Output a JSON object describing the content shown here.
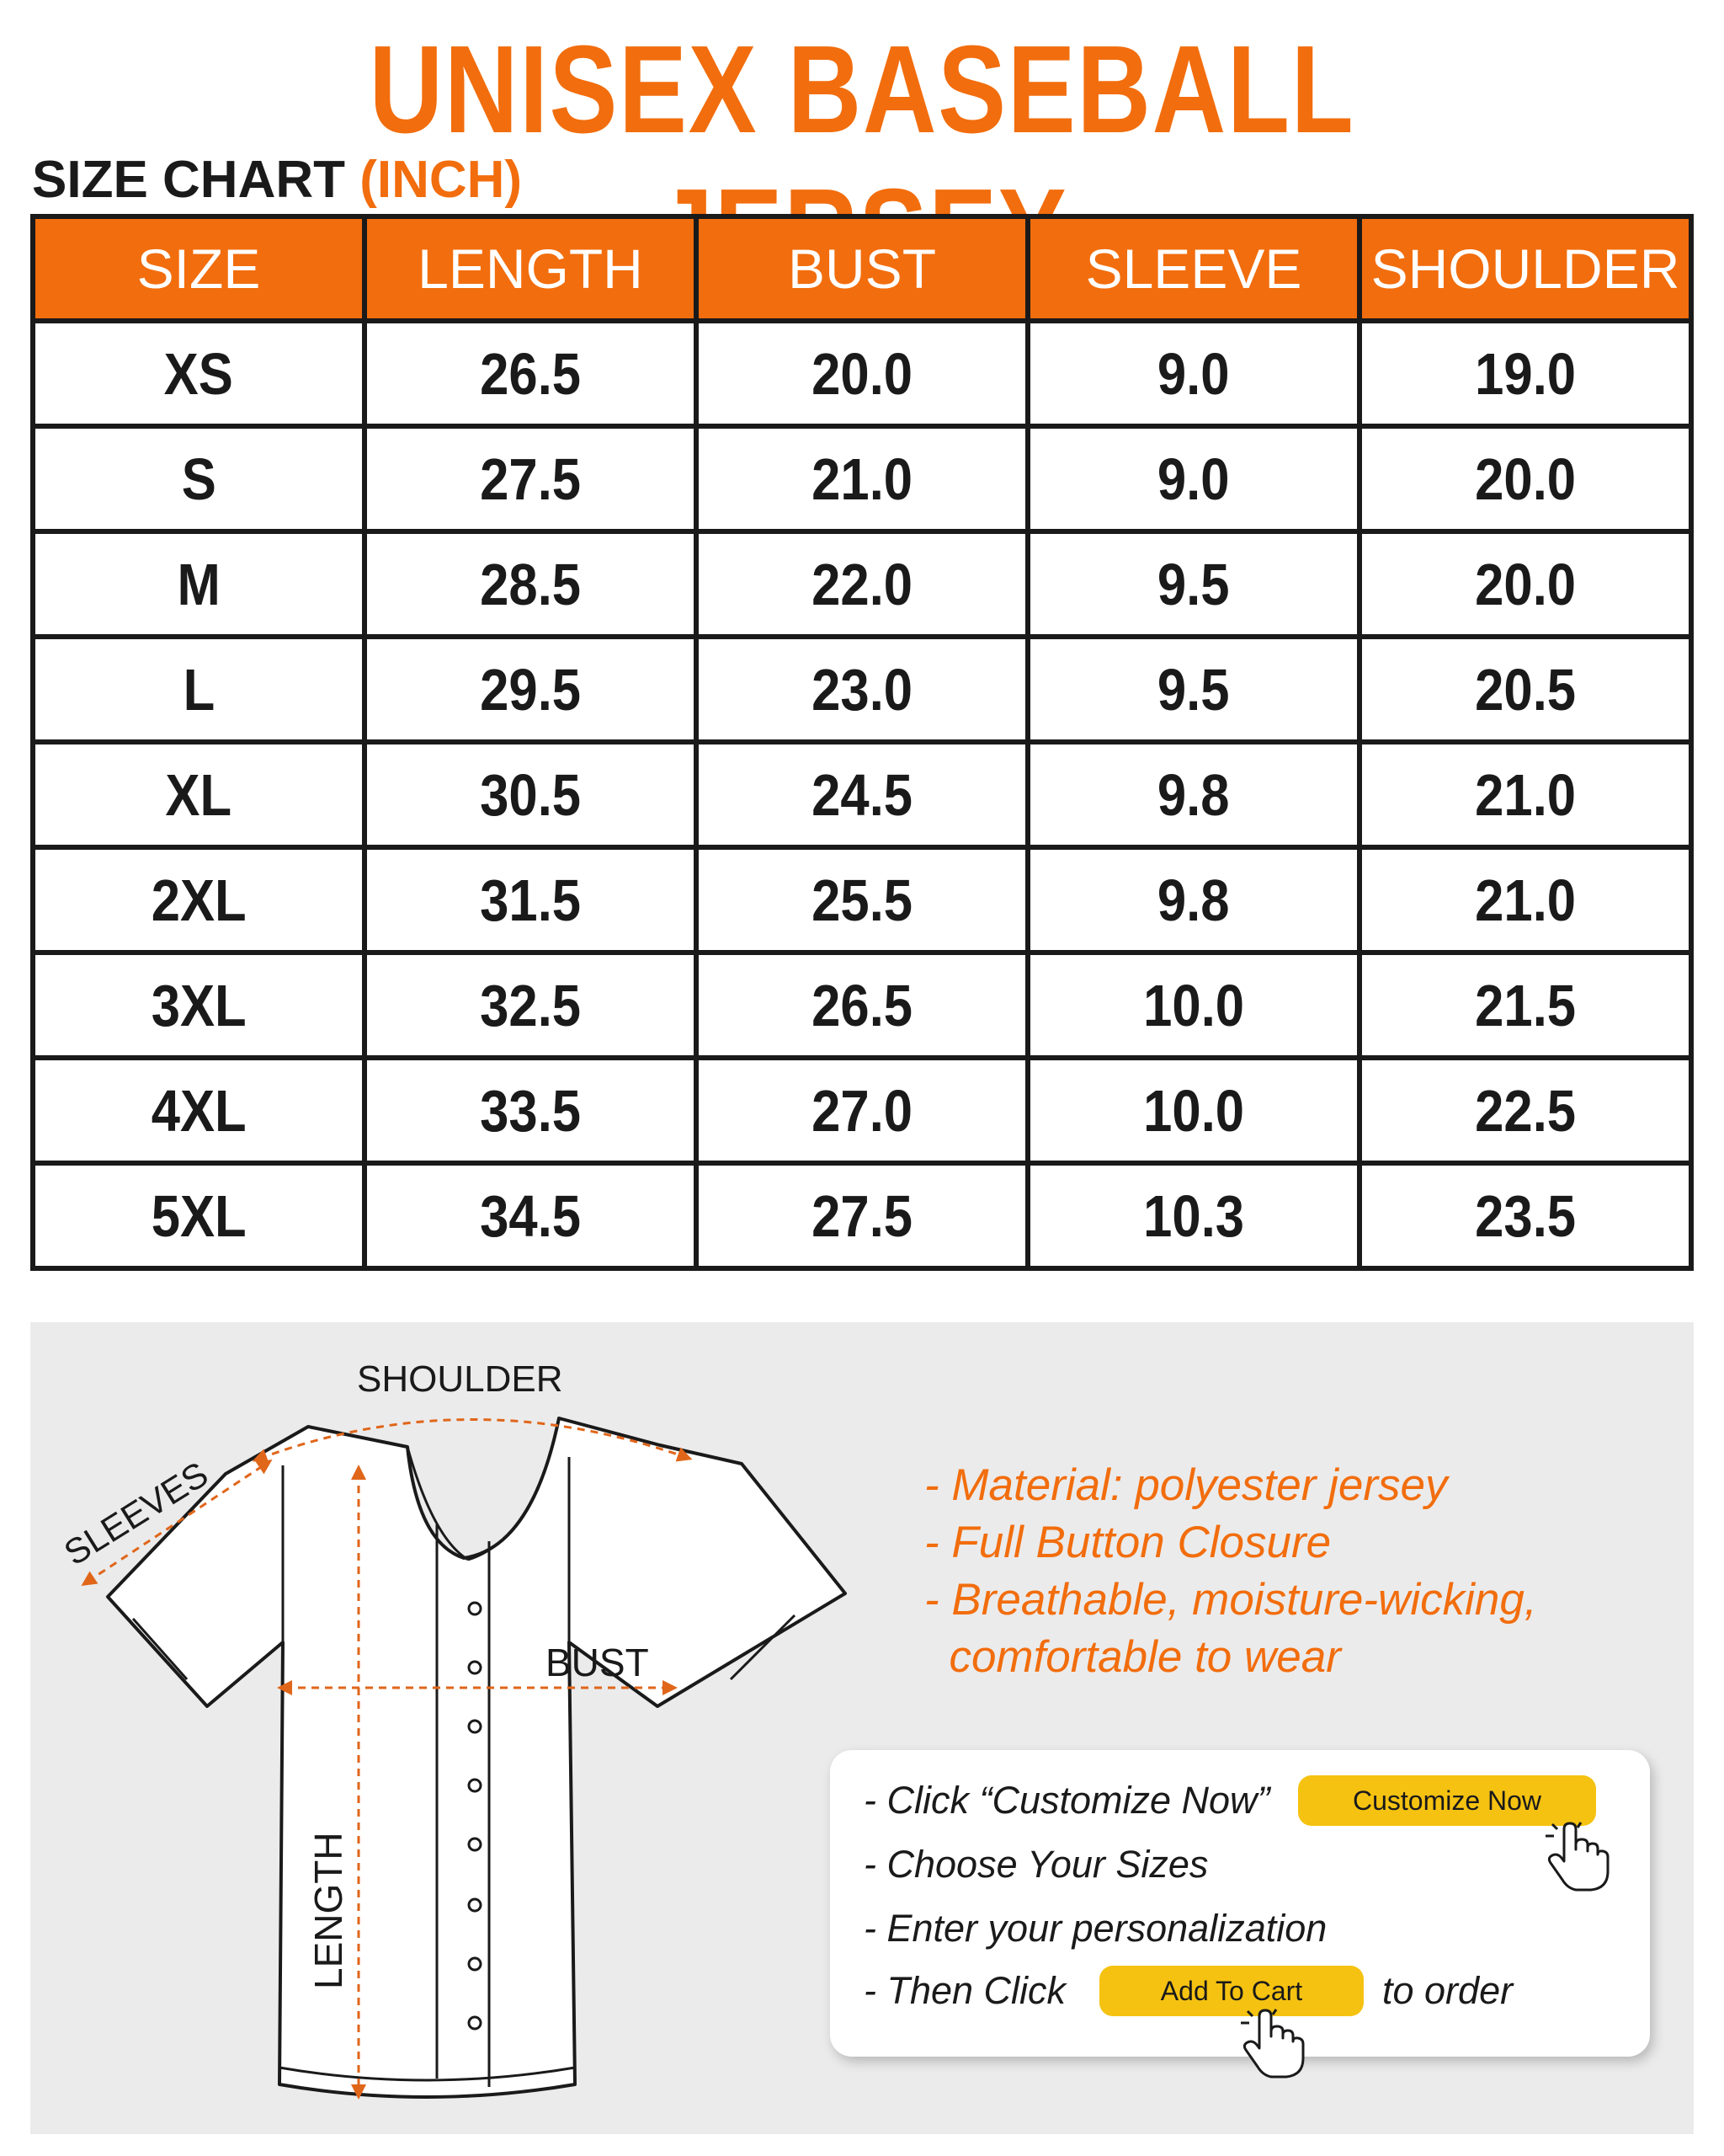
{
  "header": {
    "title": "UNISEX BASEBALL JERSEY",
    "subtitle": "SIZE CHART",
    "unit": "(INCH)"
  },
  "size_table": {
    "columns": [
      "SIZE",
      "LENGTH",
      "BUST",
      "SLEEVE",
      "SHOULDER"
    ],
    "rows": [
      [
        "XS",
        "26.5",
        "20.0",
        "9.0",
        "19.0"
      ],
      [
        "S",
        "27.5",
        "21.0",
        "9.0",
        "20.0"
      ],
      [
        "M",
        "28.5",
        "22.0",
        "9.5",
        "20.0"
      ],
      [
        "L",
        "29.5",
        "23.0",
        "9.5",
        "20.5"
      ],
      [
        "XL",
        "30.5",
        "24.5",
        "9.8",
        "21.0"
      ],
      [
        "2XL",
        "31.5",
        "25.5",
        "9.8",
        "21.0"
      ],
      [
        "3XL",
        "32.5",
        "26.5",
        "10.0",
        "21.5"
      ],
      [
        "4XL",
        "33.5",
        "27.0",
        "10.0",
        "22.5"
      ],
      [
        "5XL",
        "34.5",
        "27.5",
        "10.3",
        "23.5"
      ]
    ]
  },
  "diagram": {
    "shoulder_label": "SHOULDER",
    "sleeves_label": "SLEEVES",
    "bust_label": "BUST",
    "length_label": "LENGTH"
  },
  "features": [
    "- Material: polyester jersey",
    "- Full Button Closure",
    "- Breathable, moisture-wicking,",
    "  comfortable to wear"
  ],
  "order_steps": {
    "step1": "- Click “Customize Now”",
    "customize_button": "Customize Now",
    "step2": "- Choose Your Sizes",
    "step3": "- Enter your personalization",
    "step4_prefix": "- Then Click",
    "add_to_cart_button": "Add To Cart",
    "step4_suffix": "to order"
  },
  "colors": {
    "accent": "#f26d0d",
    "text": "#1a1a1a",
    "panel_bg": "#ebebeb",
    "button": "#f5c211"
  }
}
